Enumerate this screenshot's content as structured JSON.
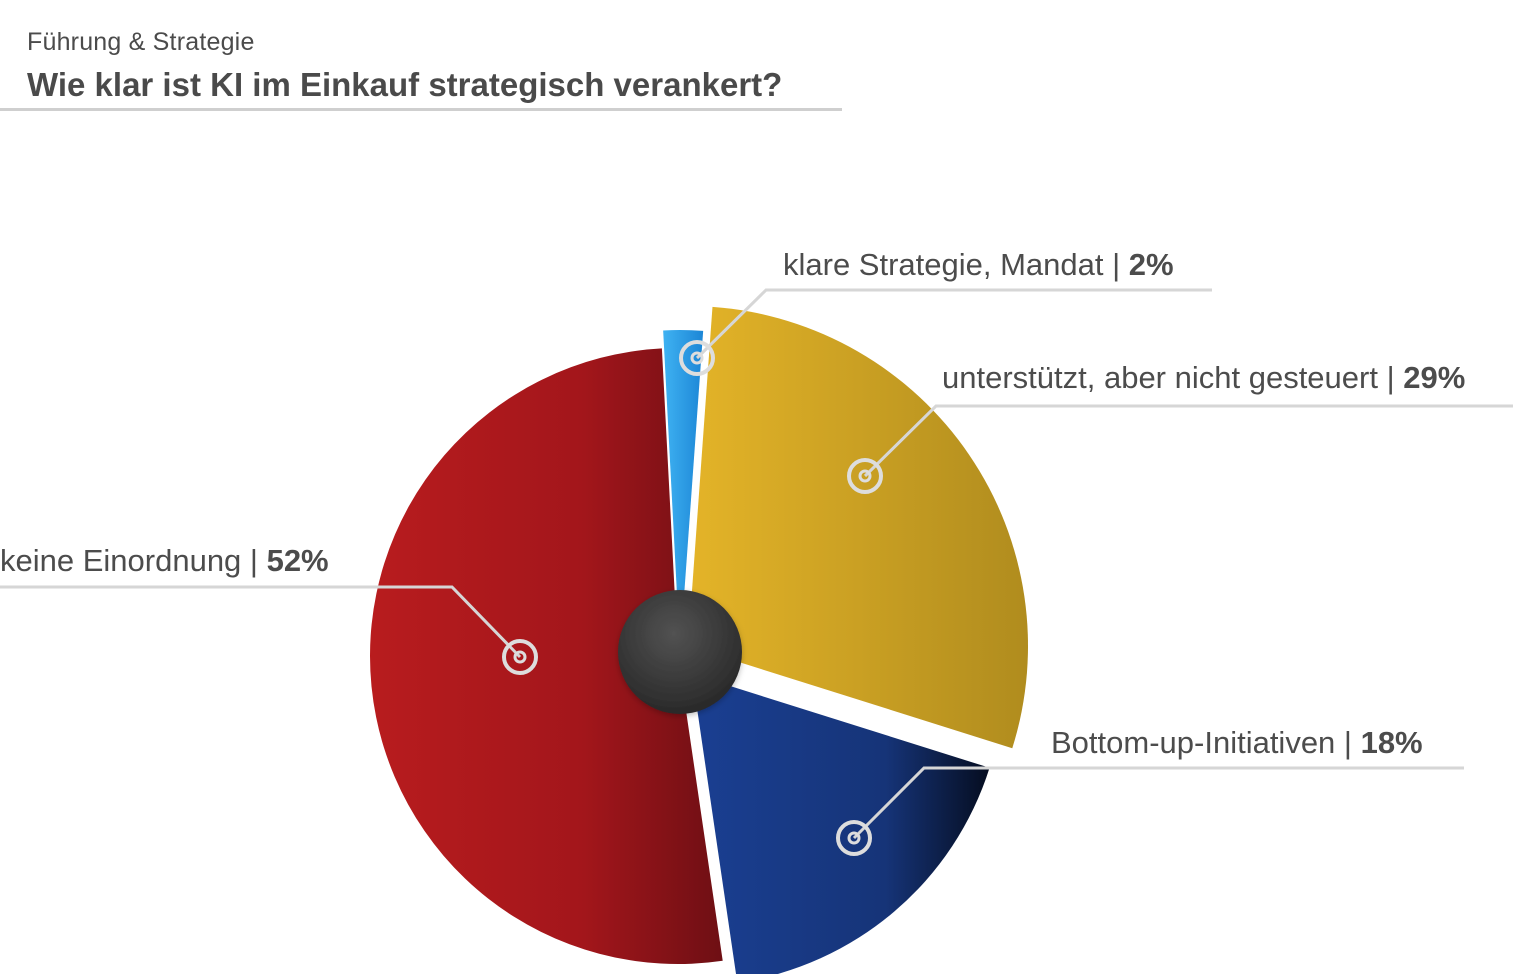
{
  "header": {
    "subtitle": "Führung & Strategie",
    "title": "Wie klar ist KI im Einkauf strategisch verankert?"
  },
  "chart_data": {
    "type": "pie",
    "slices": [
      {
        "label": "klare Strategie, Mandat",
        "value": 2,
        "value_label": "2%",
        "color": "#2a9fe8"
      },
      {
        "label": "unterstützt, aber nicht gesteuert",
        "value": 29,
        "value_label": "29%",
        "color": "#d4a526"
      },
      {
        "label": "Bottom-up-Initiativen",
        "value": 18,
        "value_label": "18%",
        "color": "#1b3a86"
      },
      {
        "label": "keine Einordnung",
        "value": 52,
        "value_label": "52%",
        "color": "#a8171b"
      }
    ],
    "center_hole_color": "#3a3a3a",
    "legend": "callout-labels"
  }
}
